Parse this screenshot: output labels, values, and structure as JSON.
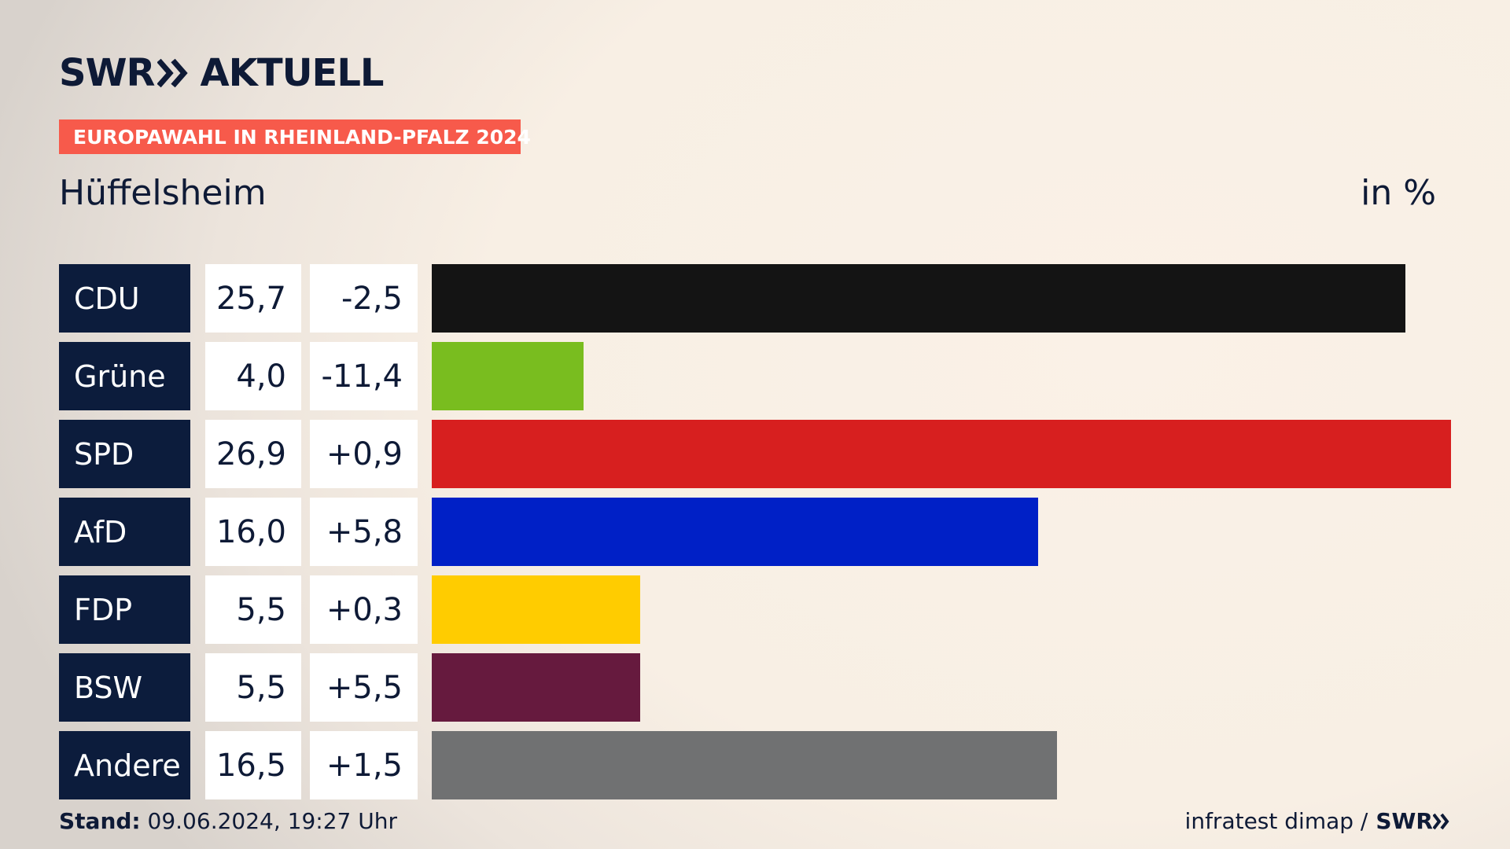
{
  "header": {
    "logo_swr": "SWR",
    "logo_aktuell": "AKTUELL",
    "banner": "EUROPAWAHL IN RHEINLAND-PFALZ 2024",
    "subtitle": "Hüffelsheim",
    "unit": "in %"
  },
  "footer": {
    "stand_label": "Stand:",
    "stand_value": "09.06.2024, 19:27 Uhr",
    "source": "infratest dimap /",
    "source_brand": "SWR"
  },
  "colors": {
    "navy": "#0c1c3c",
    "banner": "#f75a4b"
  },
  "chart_data": {
    "type": "bar",
    "categories": [
      "CDU",
      "Grüne",
      "SPD",
      "AfD",
      "FDP",
      "BSW",
      "Andere"
    ],
    "values": [
      25.7,
      4.0,
      26.9,
      16.0,
      5.5,
      5.5,
      16.5
    ],
    "value_labels": [
      "25,7",
      "4,0",
      "26,9",
      "16,0",
      "5,5",
      "5,5",
      "16,5"
    ],
    "diff_labels": [
      "-2,5",
      "-11,4",
      "+0,9",
      "+5,8",
      "+0,3",
      "+5,5",
      "+1,5"
    ],
    "diffs": [
      -2.5,
      -11.4,
      0.9,
      5.8,
      0.3,
      5.5,
      1.5
    ],
    "colors": [
      "#141414",
      "#79bd1f",
      "#d71f1f",
      "#0020c6",
      "#ffcc00",
      "#661a3e",
      "#707172"
    ],
    "ylim": [
      0,
      26.9
    ],
    "orientation": "horizontal"
  }
}
